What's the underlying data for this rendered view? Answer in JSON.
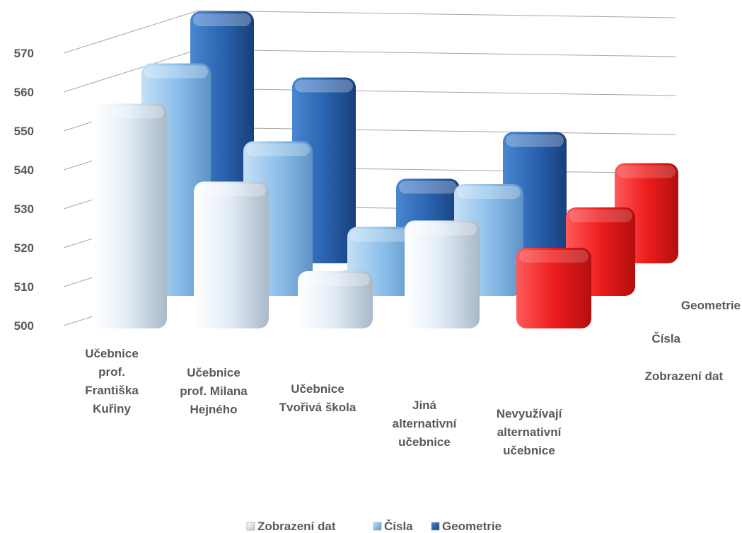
{
  "chart_data": {
    "type": "bar",
    "subtype": "3d-column",
    "title": "",
    "categories": [
      [
        "Učebnice",
        "prof.",
        "Františka",
        "Kuřiny"
      ],
      [
        "Učebnice",
        "prof. Milana",
        "Hejného"
      ],
      [
        "Učebnice",
        "Tvořivá škola"
      ],
      [
        "Jiná",
        "alternativní",
        "učebnice"
      ],
      [
        "Nevyužívají",
        "alternativní",
        "učebnice"
      ]
    ],
    "series": [
      {
        "name": "Zobrazení dat",
        "values": [
          557,
          537,
          514,
          527,
          520
        ]
      },
      {
        "name": "Čísla",
        "values": [
          559,
          539,
          517,
          528,
          522
        ]
      },
      {
        "name": "Geometrie",
        "values": [
          564,
          547,
          521,
          533,
          525
        ]
      }
    ],
    "ylim": [
      500,
      570
    ],
    "yticks": [
      500,
      510,
      520,
      530,
      540,
      550,
      560,
      570
    ],
    "grid": true,
    "legend": "bottom",
    "colors": {
      "Zobrazení dat": "#dce9f5",
      "Čísla": "#8ec0ea",
      "Geometrie": "#2b64b0",
      "highlight": "#ee1d1d",
      "grid": "#a6a6a6",
      "text": "#595959"
    },
    "highlight_category_index": 4
  }
}
